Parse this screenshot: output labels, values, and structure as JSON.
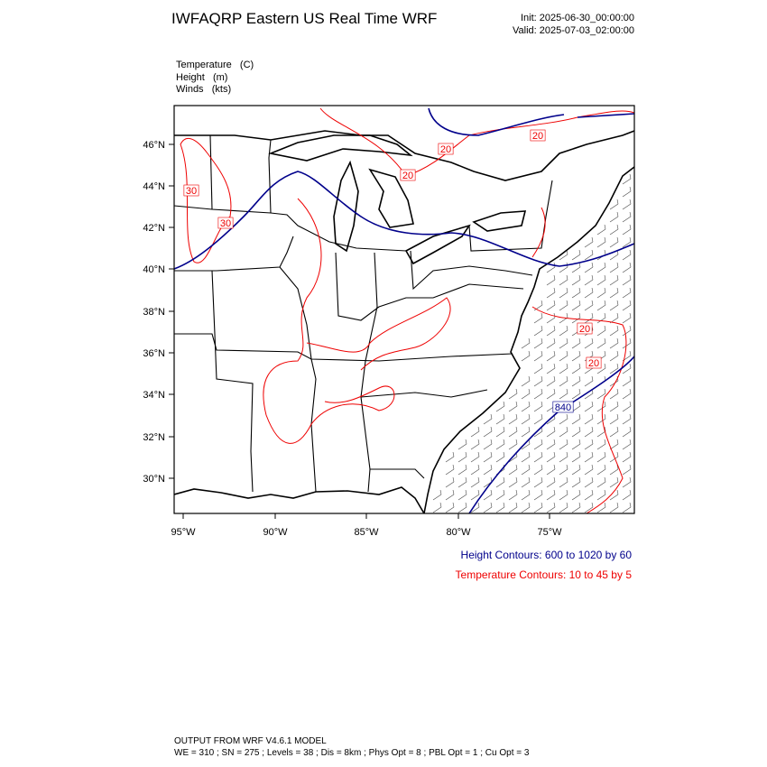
{
  "header": {
    "title": "IWFAQRP Eastern US Real Time WRF",
    "init": "Init: 2025-06-30_00:00:00",
    "valid": "Valid: 2025-07-03_02:00:00"
  },
  "fields": [
    "Temperature   (C)",
    "Height   (m)",
    "Winds   (kts)"
  ],
  "map": {
    "lat_labels": [
      "46°N",
      "44°N",
      "42°N",
      "40°N",
      "38°N",
      "36°N",
      "34°N",
      "32°N",
      "30°N"
    ],
    "lon_labels": [
      "95°W",
      "90°W",
      "85°W",
      "80°W",
      "75°W"
    ],
    "contour_labels": [
      "20",
      "20",
      "20",
      "30",
      "30",
      "20",
      "20",
      "840"
    ]
  },
  "legend": {
    "height": "Height Contours: 600 to 1020 by 60",
    "temperature": "Temperature Contours: 10 to 45 by 5"
  },
  "footer": {
    "line1": "OUTPUT FROM WRF V4.6.1 MODEL",
    "line2": "WE = 310 ; SN = 275 ; Levels = 38 ; Dis = 8km ; Phys Opt = 8 ; PBL Opt = 1 ; Cu Opt = 3"
  }
}
